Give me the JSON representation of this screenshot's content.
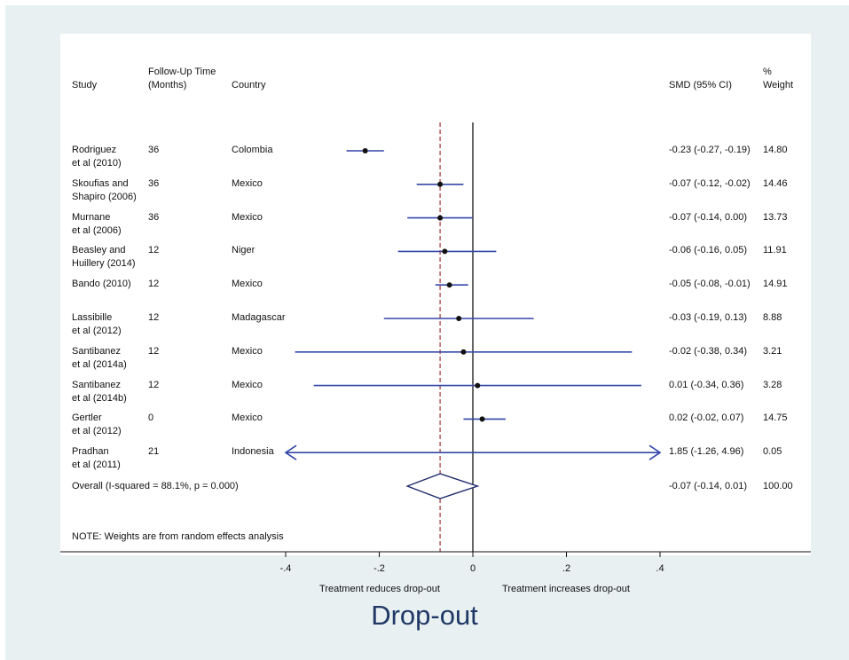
{
  "headers": {
    "study": "Study",
    "followup": "Follow-Up Time\n(Months)",
    "country": "Country",
    "smd": "SMD (95% CI)",
    "weight": "%\nWeight"
  },
  "overall_label": "Overall  (I-squared = 88.1%, p = 0.000)",
  "note": "NOTE: Weights are from random effects analysis",
  "title": "Drop-out",
  "colors": {
    "ci": "#3347a8",
    "null_line": "#000000",
    "overall_line": "#a83232",
    "background": "#e8f0f2"
  },
  "chart_data": {
    "type": "forest",
    "xlim": [
      -0.4,
      0.4
    ],
    "ticks": [
      -0.4,
      -0.2,
      0,
      0.2,
      0.4
    ],
    "tick_labels": [
      "-.4",
      "-.2",
      "0",
      ".2",
      ".4"
    ],
    "null_value": 0,
    "overall_reference_line": -0.07,
    "left_annotation": "Treatment reduces drop-out",
    "right_annotation": "Treatment increases drop-out",
    "studies": [
      {
        "study": "Rodriguez\net al (2010)",
        "followup": "36",
        "country": "Colombia",
        "smd": -0.23,
        "lo": -0.27,
        "hi": -0.19,
        "smd_text": "-0.23 (-0.27, -0.19)",
        "weight": "14.80"
      },
      {
        "study": "Skoufias and\nShapiro (2006)",
        "followup": "36",
        "country": "Mexico",
        "smd": -0.07,
        "lo": -0.12,
        "hi": -0.02,
        "smd_text": "-0.07 (-0.12, -0.02)",
        "weight": "14.46"
      },
      {
        "study": "Murnane\net al (2006)",
        "followup": "36",
        "country": "Mexico",
        "smd": -0.07,
        "lo": -0.14,
        "hi": 0.0,
        "smd_text": "-0.07 (-0.14, 0.00)",
        "weight": "13.73"
      },
      {
        "study": "Beasley and\nHuillery (2014)",
        "followup": "12",
        "country": "Niger",
        "smd": -0.06,
        "lo": -0.16,
        "hi": 0.05,
        "smd_text": "-0.06 (-0.16, 0.05)",
        "weight": "11.91"
      },
      {
        "study": "Bando (2010)",
        "followup": "12",
        "country": "Mexico",
        "smd": -0.05,
        "lo": -0.08,
        "hi": -0.01,
        "smd_text": "-0.05 (-0.08, -0.01)",
        "weight": "14.91"
      },
      {
        "study": "Lassibille\net al (2012)",
        "followup": "12",
        "country": "Madagascar",
        "smd": -0.03,
        "lo": -0.19,
        "hi": 0.13,
        "smd_text": "-0.03 (-0.19, 0.13)",
        "weight": "8.88"
      },
      {
        "study": "Santibanez\net al (2014a)",
        "followup": "12",
        "country": "Mexico",
        "smd": -0.02,
        "lo": -0.38,
        "hi": 0.34,
        "smd_text": "-0.02 (-0.38, 0.34)",
        "weight": "3.21"
      },
      {
        "study": "Santibanez\net al (2014b)",
        "followup": "12",
        "country": "Mexico",
        "smd": 0.01,
        "lo": -0.34,
        "hi": 0.36,
        "smd_text": "0.01 (-0.34, 0.36)",
        "weight": "3.28"
      },
      {
        "study": "Gertler\net al (2012)",
        "followup": "0",
        "country": "Mexico",
        "smd": 0.02,
        "lo": -0.02,
        "hi": 0.07,
        "smd_text": "0.02 (-0.02, 0.07)",
        "weight": "14.75"
      },
      {
        "study": "Pradhan\net al (2011)",
        "followup": "21",
        "country": "Indonesia",
        "smd": 1.85,
        "lo": -1.26,
        "hi": 4.96,
        "smd_text": "1.85 (-1.26, 4.96)",
        "weight": "0.05"
      }
    ],
    "overall": {
      "smd": -0.07,
      "lo": -0.14,
      "hi": 0.01,
      "smd_text": "-0.07 (-0.14, 0.01)",
      "weight": "100.00"
    }
  }
}
